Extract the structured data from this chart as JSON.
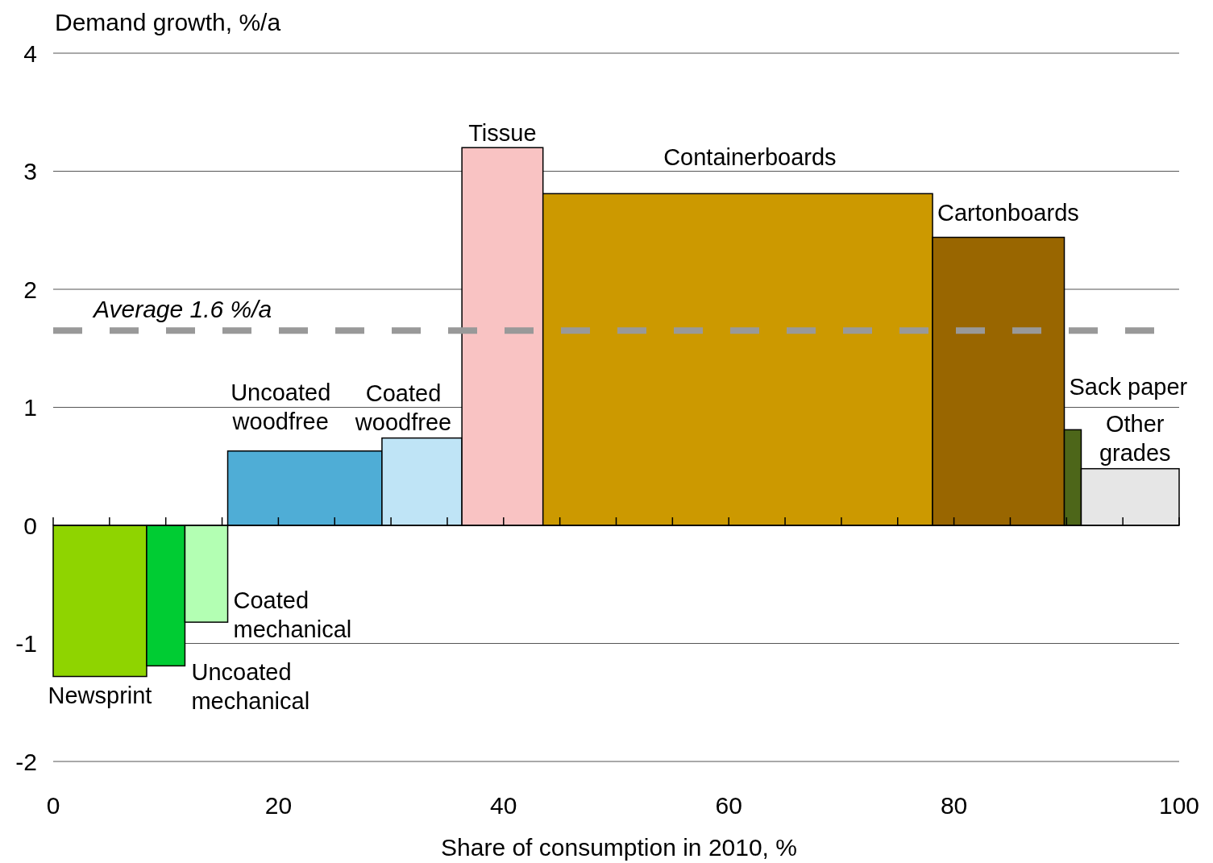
{
  "chart_data": {
    "type": "histogram",
    "xlabel": "Share of consumption  in 2010,  %",
    "ylabel": "Demand  growth,  %/a",
    "bins": [
      0,
      8.3,
      11.7,
      15.5,
      29.2,
      36.3,
      43.5,
      78.1,
      89.8,
      91.3,
      100
    ],
    "values": [
      -1.28,
      -1.19,
      -0.82,
      0.63,
      0.74,
      3.2,
      2.81,
      2.44,
      0.81,
      0.48
    ],
    "colors": [
      "#8fd400",
      "#00cc33",
      "#b3ffb3",
      "#4fadd6",
      "#bfe4f6",
      "#f9c3c3",
      "#cc9900",
      "#996600",
      "#4d6619",
      "#e6e6e6"
    ],
    "xlim": [
      0,
      100
    ],
    "ylim": [
      -2,
      4
    ],
    "xticks": [
      0,
      {
        "value": 5,
        "label": null
      },
      {
        "value": 10,
        "label": null
      },
      {
        "value": 15,
        "label": null
      },
      20,
      {
        "value": 25,
        "label": null
      },
      {
        "value": 30,
        "label": null
      },
      {
        "value": 35,
        "label": null
      },
      40,
      {
        "value": 45,
        "label": null
      },
      {
        "value": 50,
        "label": null
      },
      {
        "value": 55,
        "label": null
      },
      60,
      {
        "value": 65,
        "label": null
      },
      {
        "value": 70,
        "label": null
      },
      {
        "value": 75,
        "label": null
      },
      80,
      {
        "value": 85,
        "label": null
      },
      {
        "value": 90,
        "label": null
      },
      {
        "value": 95,
        "label": null
      },
      100
    ],
    "yticks": [
      -2,
      -1,
      0,
      1,
      2,
      3,
      4
    ],
    "grid": "y",
    "ref_lines": [
      {
        "axis": "y",
        "value": 1.65,
        "label": "Average 1.6 %/a",
        "color": "#999999",
        "line_style": "dashed"
      }
    ],
    "categories": [
      "Newsprint",
      "Uncoated\nmechanical",
      "Coated\nmechanical",
      "Uncoated\nwoodfree",
      "Coated\nwoodfree",
      "Tissue",
      "Containerboards",
      "Cartonboards",
      "Sack paper",
      "Other\ngrades"
    ]
  }
}
